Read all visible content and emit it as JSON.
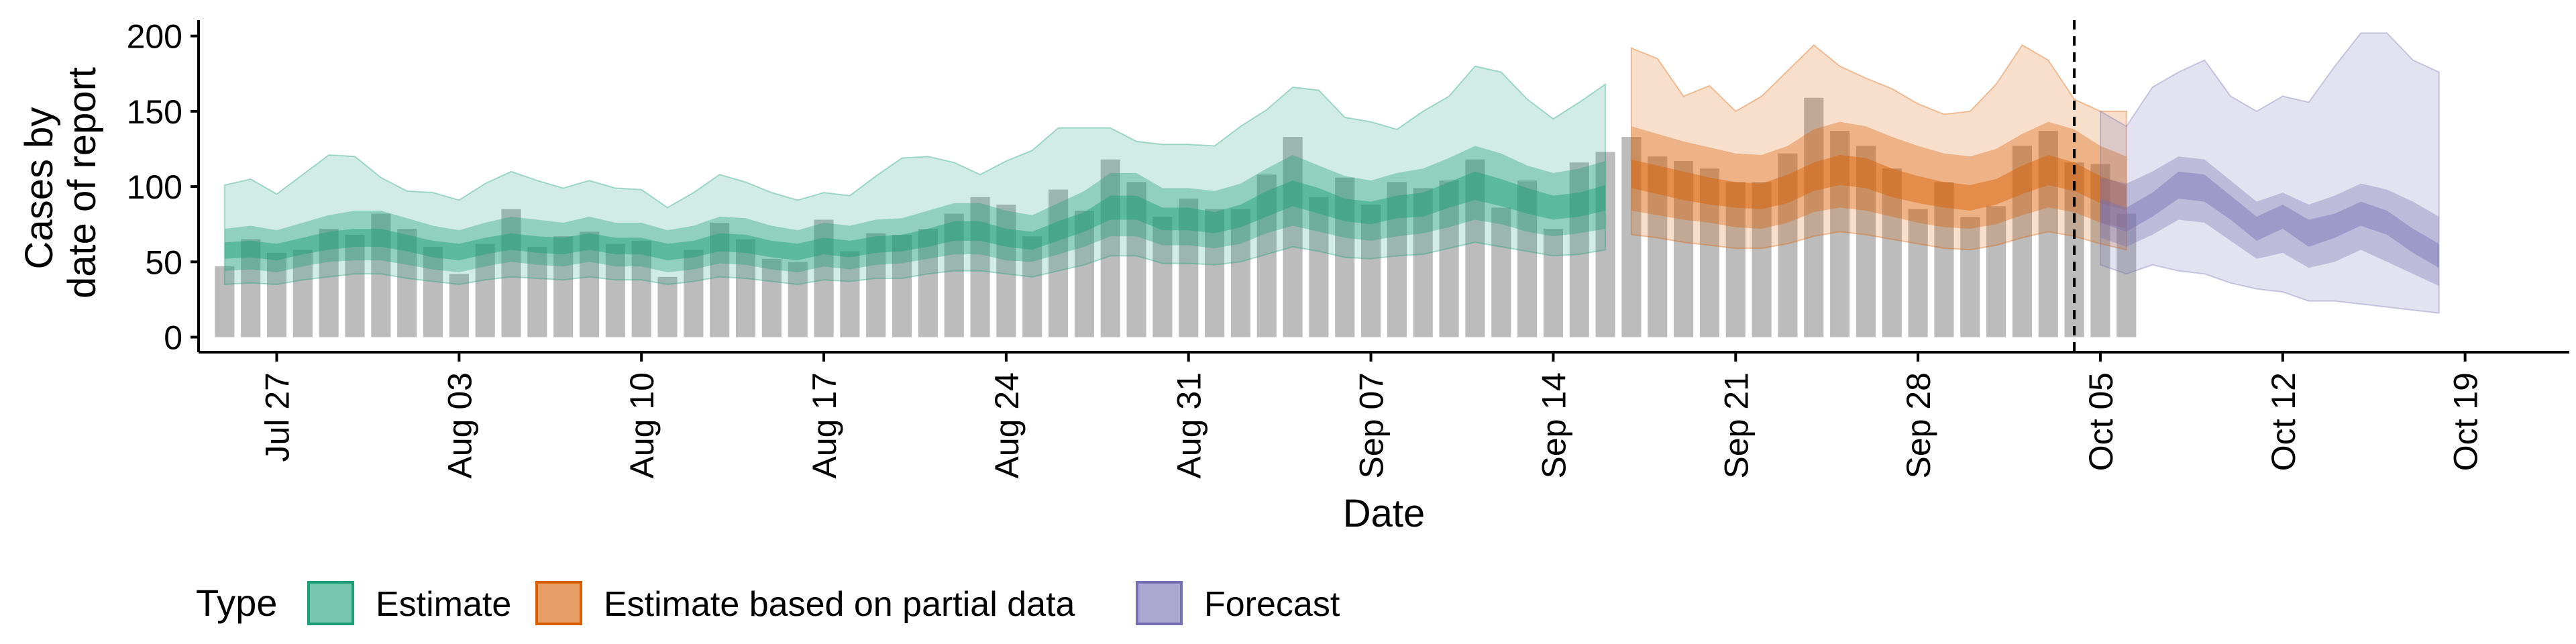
{
  "chart_data": {
    "type": "area",
    "xlabel": "Date",
    "ylabel_lines": [
      "Cases by",
      "date of report"
    ],
    "x_range": [
      "2020-07-24",
      "2020-10-23"
    ],
    "ylim": [
      -10,
      215
    ],
    "y_ticks": [
      0,
      50,
      100,
      150,
      200
    ],
    "x_ticks": [
      {
        "date": "2020-07-27",
        "label": "Jul 27"
      },
      {
        "date": "2020-08-03",
        "label": "Aug 03"
      },
      {
        "date": "2020-08-10",
        "label": "Aug 10"
      },
      {
        "date": "2020-08-17",
        "label": "Aug 17"
      },
      {
        "date": "2020-08-24",
        "label": "Aug 24"
      },
      {
        "date": "2020-08-31",
        "label": "Aug 31"
      },
      {
        "date": "2020-09-07",
        "label": "Sep 07"
      },
      {
        "date": "2020-09-14",
        "label": "Sep 14"
      },
      {
        "date": "2020-09-21",
        "label": "Sep 21"
      },
      {
        "date": "2020-09-28",
        "label": "Sep 28"
      },
      {
        "date": "2020-10-05",
        "label": "Oct 05"
      },
      {
        "date": "2020-10-12",
        "label": "Oct 12"
      },
      {
        "date": "2020-10-19",
        "label": "Oct 19"
      }
    ],
    "vline_date": "2020-10-04",
    "grid": false,
    "legend": {
      "title": "Type",
      "position": "bottom",
      "items": [
        {
          "label": "Estimate",
          "color": "#1b9e77"
        },
        {
          "label": "Estimate based on partial data",
          "color": "#d95f02"
        },
        {
          "label": "Forecast",
          "color": "#7570b3"
        }
      ]
    },
    "bars": {
      "color": "#a6a6a6",
      "start_date": "2020-07-25",
      "values": [
        47,
        65,
        56,
        58,
        72,
        68,
        82,
        72,
        60,
        42,
        62,
        85,
        60,
        67,
        70,
        62,
        64,
        40,
        58,
        76,
        65,
        52,
        50,
        78,
        57,
        69,
        68,
        72,
        82,
        93,
        88,
        67,
        98,
        84,
        118,
        103,
        80,
        92,
        85,
        85,
        108,
        133,
        93,
        106,
        88,
        103,
        99,
        104,
        118,
        86,
        104,
        72,
        116,
        123,
        133,
        120,
        117,
        112,
        103,
        103,
        122,
        159,
        137,
        127,
        112,
        85,
        103,
        80,
        87,
        127,
        137,
        116,
        115,
        82
      ]
    },
    "series": [
      {
        "name": "Estimate",
        "color": "#1b9e77",
        "start_date": "2020-07-25",
        "median": [
          57,
          58,
          56,
          60,
          64,
          66,
          66,
          62,
          58,
          56,
          60,
          63,
          61,
          60,
          63,
          60,
          60,
          56,
          58,
          63,
          62,
          58,
          56,
          60,
          58,
          61,
          62,
          66,
          70,
          70,
          66,
          64,
          70,
          76,
          86,
          86,
          78,
          78,
          76,
          80,
          88,
          95,
          90,
          84,
          82,
          86,
          88,
          94,
          100,
          96,
          90,
          86,
          88,
          92
        ],
        "inner_lo": [
          52,
          53,
          51,
          55,
          58,
          60,
          60,
          57,
          53,
          51,
          55,
          58,
          56,
          55,
          58,
          55,
          55,
          51,
          53,
          57,
          56,
          53,
          51,
          55,
          53,
          56,
          57,
          60,
          64,
          64,
          60,
          58,
          64,
          70,
          78,
          78,
          71,
          71,
          69,
          73,
          80,
          87,
          82,
          77,
          75,
          79,
          80,
          86,
          91,
          87,
          82,
          78,
          80,
          84
        ],
        "inner_hi": [
          63,
          64,
          62,
          66,
          70,
          72,
          72,
          68,
          64,
          62,
          66,
          69,
          67,
          66,
          69,
          66,
          66,
          62,
          64,
          69,
          68,
          64,
          62,
          66,
          64,
          67,
          68,
          72,
          77,
          77,
          72,
          70,
          77,
          83,
          94,
          94,
          86,
          86,
          83,
          88,
          97,
          104,
          99,
          92,
          90,
          94,
          96,
          103,
          110,
          105,
          99,
          94,
          96,
          101
        ],
        "mid_lo": [
          44,
          45,
          43,
          47,
          50,
          51,
          51,
          48,
          45,
          43,
          47,
          50,
          48,
          47,
          50,
          47,
          47,
          43,
          45,
          49,
          48,
          45,
          43,
          47,
          45,
          48,
          49,
          52,
          55,
          55,
          51,
          50,
          55,
          60,
          67,
          67,
          61,
          61,
          59,
          62,
          69,
          74,
          70,
          66,
          64,
          67,
          69,
          73,
          78,
          75,
          70,
          67,
          69,
          72
        ],
        "mid_hi": [
          72,
          74,
          71,
          76,
          81,
          84,
          84,
          79,
          74,
          71,
          76,
          80,
          78,
          76,
          80,
          76,
          76,
          71,
          74,
          80,
          79,
          74,
          71,
          76,
          74,
          78,
          79,
          84,
          89,
          89,
          84,
          81,
          89,
          97,
          109,
          109,
          99,
          99,
          97,
          102,
          112,
          121,
          114,
          107,
          104,
          109,
          112,
          119,
          127,
          122,
          114,
          109,
          112,
          117
        ],
        "outer_lo": [
          35,
          36,
          35,
          38,
          40,
          42,
          42,
          39,
          37,
          35,
          38,
          40,
          39,
          38,
          40,
          38,
          38,
          35,
          37,
          40,
          39,
          37,
          35,
          38,
          37,
          39,
          39,
          42,
          44,
          44,
          42,
          40,
          44,
          48,
          54,
          54,
          49,
          49,
          48,
          50,
          55,
          60,
          57,
          53,
          52,
          54,
          55,
          59,
          63,
          60,
          57,
          54,
          55,
          58
        ],
        "outer_hi": [
          101,
          105,
          95,
          108,
          121,
          120,
          106,
          97,
          96,
          91,
          102,
          110,
          104,
          99,
          104,
          99,
          98,
          86,
          96,
          108,
          103,
          96,
          91,
          96,
          94,
          107,
          119,
          120,
          116,
          108,
          117,
          124,
          139,
          139,
          139,
          130,
          128,
          128,
          127,
          140,
          151,
          166,
          164,
          146,
          143,
          138,
          150,
          160,
          180,
          176,
          158,
          145,
          156,
          168
        ]
      },
      {
        "name": "Estimate based on partial data",
        "color": "#d95f02",
        "start_date": "2020-09-17",
        "median": [
          108,
          104,
          100,
          97,
          94,
          93,
          98,
          106,
          110,
          108,
          102,
          98,
          94,
          92,
          96,
          104,
          110,
          106,
          98,
          92
        ],
        "inner_lo": [
          99,
          95,
          91,
          88,
          86,
          85,
          89,
          97,
          101,
          99,
          93,
          89,
          86,
          84,
          88,
          95,
          101,
          97,
          89,
          84
        ],
        "inner_hi": [
          118,
          114,
          110,
          106,
          103,
          102,
          108,
          116,
          121,
          119,
          112,
          107,
          103,
          101,
          105,
          114,
          121,
          116,
          107,
          101
        ],
        "mid_lo": [
          84,
          81,
          78,
          76,
          73,
          72,
          76,
          83,
          86,
          84,
          80,
          76,
          73,
          72,
          75,
          81,
          86,
          83,
          76,
          72
        ],
        "mid_hi": [
          140,
          135,
          130,
          126,
          122,
          121,
          127,
          138,
          143,
          140,
          133,
          127,
          122,
          120,
          125,
          135,
          143,
          138,
          127,
          120
        ],
        "outer_lo": [
          68,
          66,
          63,
          61,
          59,
          59,
          62,
          67,
          70,
          68,
          65,
          62,
          59,
          58,
          61,
          66,
          70,
          67,
          62,
          58
        ],
        "outer_hi": [
          192,
          185,
          160,
          167,
          150,
          160,
          177,
          194,
          180,
          172,
          165,
          155,
          148,
          150,
          168,
          194,
          184,
          158,
          150,
          150
        ]
      },
      {
        "name": "Forecast",
        "color": "#7570b3",
        "start_date": "2020-10-05",
        "median": [
          84,
          78,
          88,
          100,
          98,
          86,
          72,
          80,
          70,
          74,
          82,
          76,
          64,
          54
        ],
        "inner_lo": [
          76,
          70,
          80,
          92,
          90,
          78,
          64,
          72,
          60,
          66,
          74,
          68,
          56,
          46
        ],
        "inner_hi": [
          92,
          86,
          96,
          110,
          108,
          94,
          80,
          88,
          78,
          82,
          90,
          84,
          72,
          62
        ],
        "mid_lo": [
          66,
          60,
          68,
          78,
          76,
          64,
          52,
          56,
          46,
          50,
          58,
          50,
          42,
          34
        ],
        "mid_hi": [
          106,
          102,
          110,
          120,
          118,
          104,
          90,
          96,
          88,
          94,
          102,
          98,
          90,
          80
        ],
        "outer_lo": [
          48,
          42,
          48,
          44,
          42,
          36,
          32,
          30,
          24,
          24,
          22,
          20,
          18,
          16
        ],
        "outer_hi": [
          150,
          140,
          166,
          176,
          184,
          160,
          150,
          160,
          156,
          180,
          202,
          202,
          184,
          176
        ]
      }
    ]
  }
}
